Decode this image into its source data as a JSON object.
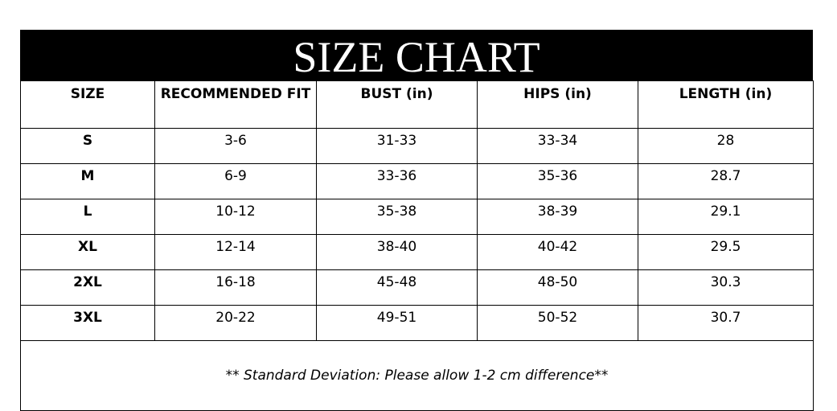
{
  "title": "SIZE CHART",
  "headers": [
    "SIZE",
    "RECOMMENDED FIT",
    "BUST (in)",
    "HIPS (in)",
    "LENGTH (in)"
  ],
  "rows": [
    [
      "S",
      "3-6",
      "31-33",
      "33-34",
      "28"
    ],
    [
      "M",
      "6-9",
      "33-36",
      "35-36",
      "28.7"
    ],
    [
      "L",
      "10-12",
      "35-38",
      "38-39",
      "29.1"
    ],
    [
      "XL",
      "12-14",
      "38-40",
      "40-42",
      "29.5"
    ],
    [
      "2XL",
      "16-18",
      "45-48",
      "48-50",
      "30.3"
    ],
    [
      "3XL",
      "20-22",
      "49-51",
      "50-52",
      "30.7"
    ]
  ],
  "note": "** Standard Deviation: Please allow 1-2 cm difference**"
}
